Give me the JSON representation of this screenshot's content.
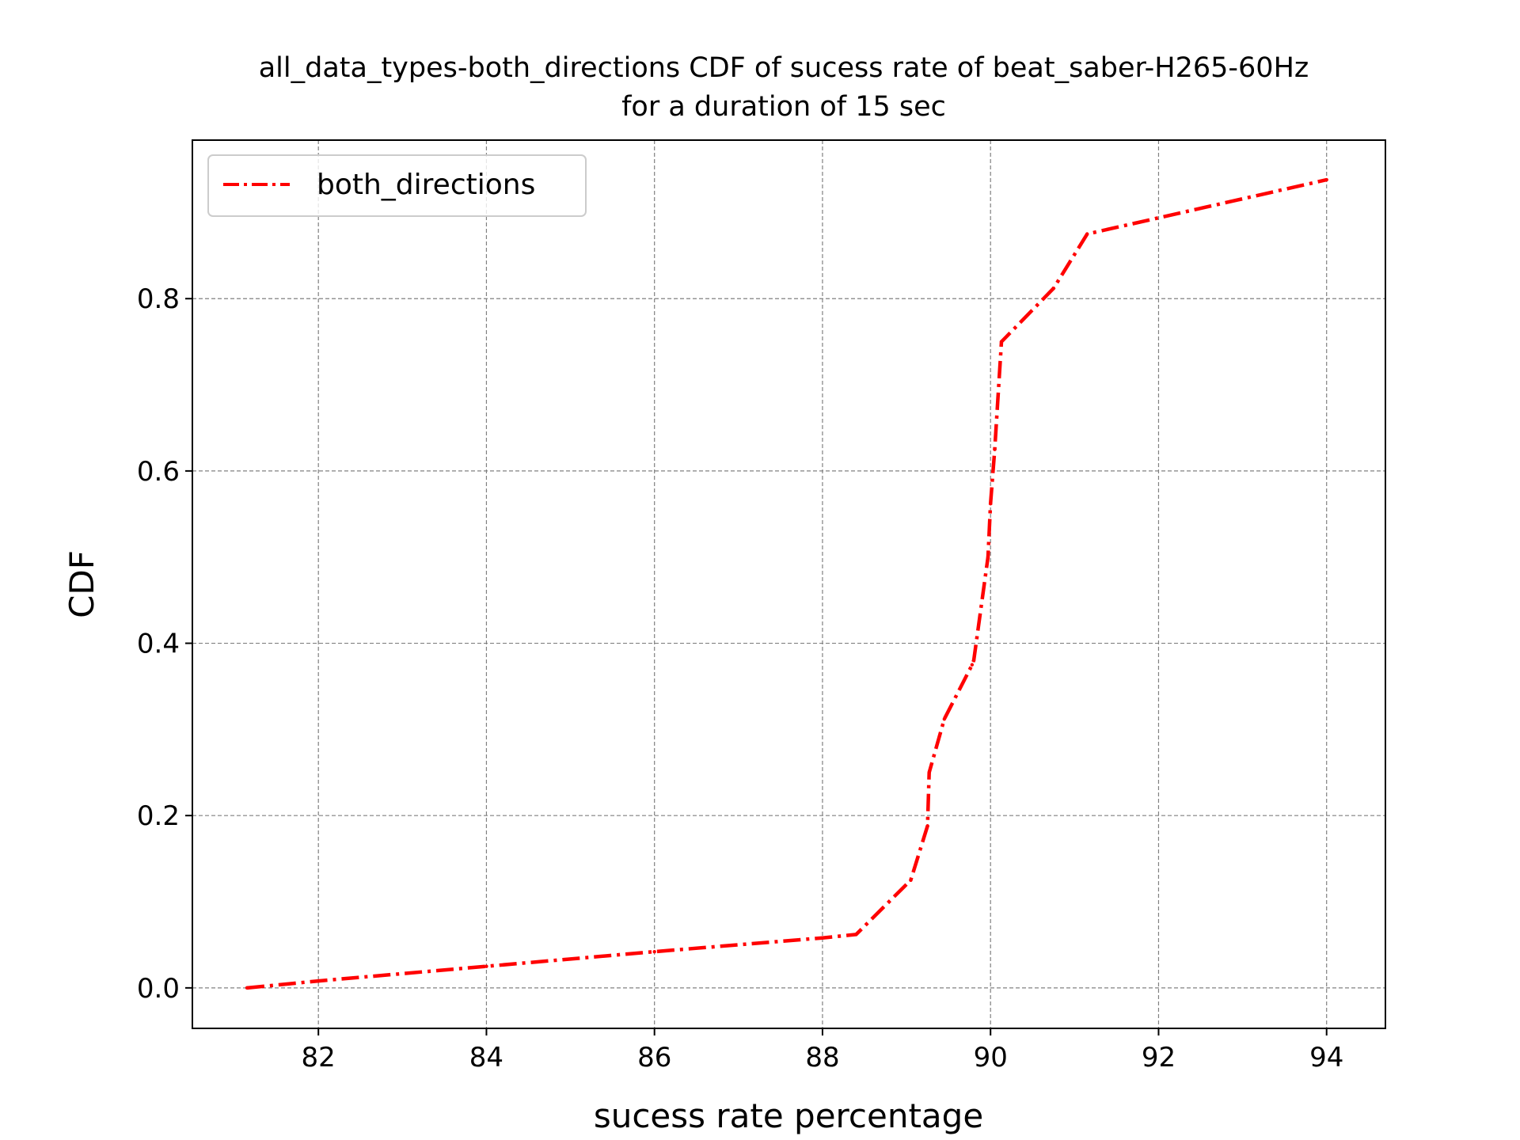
{
  "chart_data": {
    "type": "line",
    "title": "all_data_types-both_directions CDF of sucess rate of beat_saber-H265-60Hz",
    "subtitle": "for a duration of 15 sec",
    "xlabel": "sucess rate percentage",
    "ylabel": "CDF",
    "xlim": [
      80.5,
      94.7
    ],
    "ylim": [
      -0.047,
      0.984
    ],
    "xticks": [
      82,
      84,
      86,
      88,
      90,
      92,
      94
    ],
    "xtick_labels": [
      "82",
      "84",
      "86",
      "88",
      "90",
      "92",
      "94"
    ],
    "yticks": [
      0.0,
      0.2,
      0.4,
      0.6,
      0.8
    ],
    "ytick_labels": [
      "0.0",
      "0.2",
      "0.4",
      "0.6",
      "0.8"
    ],
    "grid": true,
    "legend_position": "top-left",
    "series": [
      {
        "name": "both_directions",
        "color": "#ff0000",
        "linestyle": "dashdot",
        "x": [
          81.15,
          82.0,
          84.0,
          86.0,
          88.0,
          88.4,
          89.05,
          89.25,
          89.27,
          89.45,
          89.78,
          89.8,
          89.97,
          90.0,
          90.05,
          90.13,
          90.75,
          91.15,
          94.0
        ],
        "y": [
          0.0,
          0.008,
          0.025,
          0.042,
          0.058,
          0.062,
          0.125,
          0.188,
          0.25,
          0.312,
          0.375,
          0.38,
          0.5,
          0.562,
          0.625,
          0.75,
          0.812,
          0.875,
          0.938
        ]
      }
    ]
  }
}
